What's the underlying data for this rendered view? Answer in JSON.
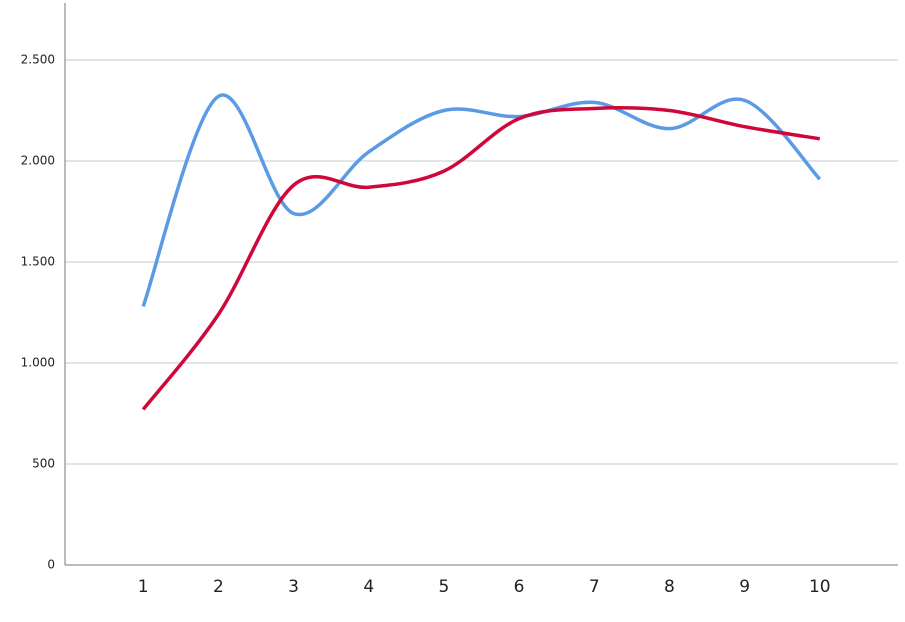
{
  "chart_data": {
    "type": "line",
    "x": [
      1,
      2,
      3,
      4,
      5,
      6,
      7,
      8,
      9,
      10
    ],
    "xlim": [
      0,
      11
    ],
    "xticks": [
      1,
      2,
      3,
      4,
      5,
      6,
      7,
      8,
      9,
      10
    ],
    "ylim": [
      0,
      2750
    ],
    "yticks": [
      0,
      500,
      {
        "value": 1000,
        "label": "1.000"
      },
      {
        "value": 1500,
        "label": "1.500"
      },
      {
        "value": 2000,
        "label": "2.000"
      },
      {
        "value": 2500,
        "label": "2.500"
      }
    ],
    "grid": true,
    "smooth": true,
    "series": [
      {
        "color": "#5b9be6",
        "values": [
          1280,
          2320,
          1740,
          2045,
          2250,
          2220,
          2290,
          2160,
          2300,
          1910
        ]
      },
      {
        "color": "#d0073a",
        "values": [
          770,
          1240,
          1880,
          1870,
          1950,
          2210,
          2260,
          2250,
          2170,
          2110
        ]
      }
    ]
  }
}
